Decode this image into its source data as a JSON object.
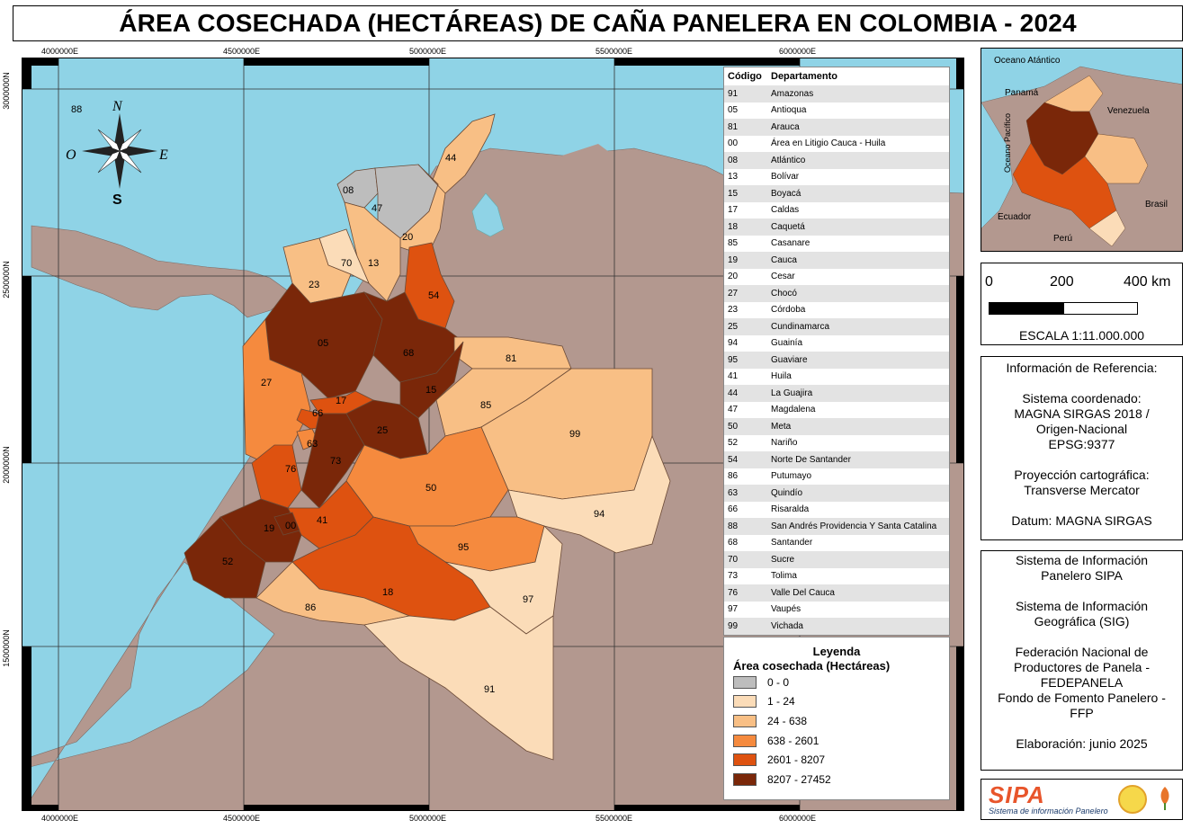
{
  "title": "ÁREA COSECHADA (HECTÁREAS) DE CAÑA PANELERA EN COLOMBIA - 2024",
  "grid_labels": {
    "x": [
      "4000000E",
      "4500000E",
      "5000000E",
      "5500000E",
      "6000000E"
    ],
    "y": [
      "3000000N",
      "2500000N",
      "2000000N",
      "1500000N"
    ]
  },
  "compass": {
    "north": "N",
    "south": "S",
    "east": "E",
    "west": "O"
  },
  "map_labels": [
    "88",
    "44",
    "08",
    "47",
    "20",
    "70",
    "13",
    "23",
    "54",
    "05",
    "68",
    "81",
    "27",
    "17",
    "15",
    "85",
    "66",
    "99",
    "25",
    "63",
    "73",
    "76",
    "50",
    "41",
    "19",
    "00",
    "94",
    "52",
    "95",
    "18",
    "97",
    "86",
    "91"
  ],
  "table": {
    "header_code": "Código",
    "header_dept": "Departamento",
    "rows": [
      {
        "code": "91",
        "name": "Amazonas"
      },
      {
        "code": "05",
        "name": "Antioqua"
      },
      {
        "code": "81",
        "name": "Arauca"
      },
      {
        "code": "00",
        "name": "Área en Litigio Cauca - Huila"
      },
      {
        "code": "08",
        "name": "Atlántico"
      },
      {
        "code": "13",
        "name": "Bolívar"
      },
      {
        "code": "15",
        "name": "Boyacá"
      },
      {
        "code": "17",
        "name": "Caldas"
      },
      {
        "code": "18",
        "name": "Caquetá"
      },
      {
        "code": "85",
        "name": "Casanare"
      },
      {
        "code": "19",
        "name": "Cauca"
      },
      {
        "code": "20",
        "name": "Cesar"
      },
      {
        "code": "27",
        "name": "Chocó"
      },
      {
        "code": "23",
        "name": "Córdoba"
      },
      {
        "code": "25",
        "name": "Cundinamarca"
      },
      {
        "code": "94",
        "name": "Guainía"
      },
      {
        "code": "95",
        "name": "Guaviare"
      },
      {
        "code": "41",
        "name": "Huila"
      },
      {
        "code": "44",
        "name": "La Guajira"
      },
      {
        "code": "47",
        "name": "Magdalena"
      },
      {
        "code": "50",
        "name": "Meta"
      },
      {
        "code": "52",
        "name": "Nariño"
      },
      {
        "code": "54",
        "name": "Norte De Santander"
      },
      {
        "code": "86",
        "name": "Putumayo"
      },
      {
        "code": "63",
        "name": "Quindío"
      },
      {
        "code": "66",
        "name": "Risaralda"
      },
      {
        "code": "88",
        "name": "San Andrés Providencia Y Santa Catalina"
      },
      {
        "code": "68",
        "name": "Santander"
      },
      {
        "code": "70",
        "name": "Sucre"
      },
      {
        "code": "73",
        "name": "Tolima"
      },
      {
        "code": "76",
        "name": "Valle Del Cauca"
      },
      {
        "code": "97",
        "name": "Vaupés"
      },
      {
        "code": "99",
        "name": "Vichada"
      }
    ]
  },
  "legend": {
    "title": "Leyenda",
    "subtitle": "Área cosechada (Hectáreas)",
    "items": [
      {
        "label": "0 - 0",
        "color": "#bdbdbd"
      },
      {
        "label": "1 - 24",
        "color": "#fbdcb8"
      },
      {
        "label": "24 - 638",
        "color": "#f8bf85"
      },
      {
        "label": "638 - 2601",
        "color": "#f58a3e"
      },
      {
        "label": "2601 - 8207",
        "color": "#de5210"
      },
      {
        "label": "8207 - 27452",
        "color": "#7a2709"
      }
    ]
  },
  "inset_labels": {
    "atlantic": "Oceano Atántico",
    "panama": "Panamá",
    "venezuela": "Venezuela",
    "pacific": "Oceano Pacífico",
    "brasil": "Brasil",
    "ecuador": "Ecuador",
    "peru": "Perú"
  },
  "scale": {
    "ticks": [
      "0",
      "200",
      "400 km"
    ],
    "text": "ESCALA 1:11.000.000"
  },
  "reference": {
    "heading": "Información de Referencia:",
    "coord_label": "Sistema coordenado:",
    "coord_1": "MAGNA SIRGAS 2018 /",
    "coord_2": "Origen-Nacional",
    "epsg": "EPSG:9377",
    "proj_label": "Proyección cartográfica:",
    "proj": "Transverse Mercator",
    "datum": "Datum: MAGNA SIRGAS"
  },
  "credits": {
    "l1": "Sistema de Información",
    "l2": "Panelero SIPA",
    "l3": "Sistema de Información",
    "l4": "Geográfica (SIG)",
    "l5": "Federación Nacional de",
    "l6": "Productores de Panela -",
    "l7": "FEDEPANELA",
    "l8": "Fondo de Fomento Panelero -",
    "l9": "FFP",
    "date": "Elaboración: junio 2025"
  },
  "logo": {
    "name": "SIPA",
    "tagline": "Sistema de información Panelero"
  },
  "colors": {
    "sea": "#8fd3e6",
    "land": "#b3988f",
    "gray": "#bdbdbd",
    "c1": "#fbdcb8",
    "c2": "#f8bf85",
    "c3": "#f58a3e",
    "c4": "#de5210",
    "c5": "#7a2709"
  }
}
